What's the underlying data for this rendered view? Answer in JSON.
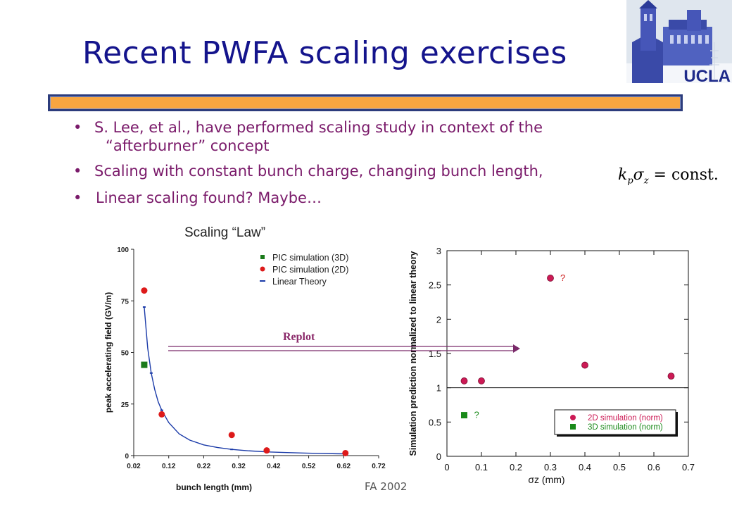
{
  "slide": {
    "title": "Recent PWFA scaling exercises",
    "bullets": [
      {
        "line1": "S. Lee, et al., have performed scaling study in context of the",
        "line2": "“afterburner” concept"
      },
      {
        "line1": "Scaling with constant bunch charge, changing bunch length,"
      },
      {
        "line1": "Linear scaling found? Maybe…"
      }
    ],
    "bullet_char": "•",
    "formula": {
      "k": "k",
      "p": "p",
      "sigma": "σ",
      "z": "z",
      "rest": " = const."
    },
    "footer": "FA 2002",
    "logo_text": "UCLA",
    "arrow_label": "Replot",
    "colors": {
      "title": "#14148c",
      "bar": "#f7a540",
      "bullets": "#7a1a6a"
    }
  },
  "chart_data": [
    {
      "type": "scatter",
      "title": "Scaling “Law”",
      "xlabel": "bunch length (mm)",
      "ylabel": "peak accelerating field (GV/m)",
      "xlim": [
        0.02,
        0.72
      ],
      "ylim": [
        0,
        100
      ],
      "xticks": [
        "0.02",
        "0.12",
        "0.22",
        "0.32",
        "0.42",
        "0.52",
        "0.62",
        "0.72"
      ],
      "yticks": [
        "0",
        "25",
        "50",
        "75",
        "100"
      ],
      "legend": [
        {
          "name": "PIC simulation (3D)",
          "color": "#1a7a1a",
          "marker": "square"
        },
        {
          "name": "PIC simulation (2D)",
          "color": "#dd1a1a",
          "marker": "circle"
        },
        {
          "name": "Linear Theory",
          "color": "#1a3aa8",
          "marker": "line"
        }
      ],
      "legend_position": "top-right",
      "series": [
        {
          "name": "PIC simulation (3D)",
          "x": [
            0.05
          ],
          "y": [
            44
          ]
        },
        {
          "name": "PIC simulation (2D)",
          "x": [
            0.05,
            0.1,
            0.3,
            0.4,
            0.625
          ],
          "y": [
            80,
            20,
            10,
            2.5,
            1.2
          ]
        },
        {
          "name": "Linear Theory",
          "x": [
            0.05,
            0.06,
            0.07,
            0.08,
            0.09,
            0.1,
            0.12,
            0.15,
            0.18,
            0.22,
            0.26,
            0.3,
            0.35,
            0.4,
            0.45,
            0.5,
            0.55,
            0.6,
            0.625
          ],
          "y": [
            72,
            52,
            40,
            32,
            26,
            22,
            16,
            10.5,
            7.5,
            5.2,
            3.9,
            3.0,
            2.3,
            1.8,
            1.5,
            1.25,
            1.05,
            0.9,
            0.85
          ]
        }
      ]
    },
    {
      "type": "scatter",
      "title": "",
      "xlabel": "σz (mm)",
      "ylabel": "Simulation prediction normalized to linear theory",
      "xlim": [
        0,
        0.7
      ],
      "ylim": [
        0,
        3
      ],
      "xticks": [
        "0",
        "0.1",
        "0.2",
        "0.3",
        "0.4",
        "0.5",
        "0.6",
        "0.7"
      ],
      "yticks": [
        "0",
        "0.5",
        "1",
        "1.5",
        "2",
        "2.5",
        "3"
      ],
      "reference_line": 1,
      "legend": [
        {
          "name": "2D simulation (norm)",
          "color": "#cc1a55",
          "marker": "circle"
        },
        {
          "name": "3D simulation (norm)",
          "color": "#1a8a1a",
          "marker": "square"
        }
      ],
      "legend_position": "bottom-right",
      "series": [
        {
          "name": "2D simulation (norm)",
          "x": [
            0.05,
            0.1,
            0.3,
            0.4,
            0.65
          ],
          "y": [
            1.1,
            1.1,
            2.6,
            1.33,
            1.17
          ]
        },
        {
          "name": "3D simulation (norm)",
          "x": [
            0.05
          ],
          "y": [
            0.6
          ]
        }
      ],
      "annotations": [
        {
          "text": "?",
          "x": 0.3,
          "y": 2.6,
          "color": "#cc1a1a"
        },
        {
          "text": "?",
          "x": 0.05,
          "y": 0.6,
          "color": "#1a8a1a"
        }
      ]
    }
  ]
}
